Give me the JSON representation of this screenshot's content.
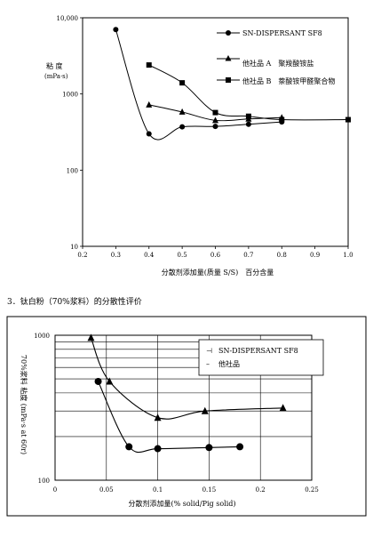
{
  "section_heading": "3．钛白粉（70%浆料）的分散性评价",
  "chart_data": [
    {
      "type": "line",
      "scale": "log-y",
      "ylabel": "粘 度\n(mPa·s)",
      "xlabel": "分散剂添加量(质量 S/S)　百分含量",
      "x_ticks": [
        "0.2",
        "0.3",
        "0.4",
        "0.5",
        "0.6",
        "0.7",
        "0.8",
        "0.9",
        "1.0"
      ],
      "y_ticks": [
        "10,000",
        "1000",
        "100",
        "10"
      ],
      "xlim": [
        0.2,
        1.0
      ],
      "ylim": [
        10,
        10000
      ],
      "series": [
        {
          "name": "SN-DISPERSANT SF8",
          "marker": "circle",
          "x": [
            0.3,
            0.4,
            0.5,
            0.6,
            0.7,
            0.8
          ],
          "y": [
            7000,
            300,
            370,
            375,
            400,
            430
          ]
        },
        {
          "name": "他社品 A　聚羧酸铵盐",
          "marker": "triangle",
          "x": [
            0.4,
            0.5,
            0.6,
            0.7,
            0.8
          ],
          "y": [
            720,
            580,
            450,
            470,
            490
          ]
        },
        {
          "name": "他社品 B　萘酸铵甲醛聚合物",
          "marker": "square",
          "x": [
            0.4,
            0.5,
            0.6,
            0.7,
            0.8,
            1.0
          ],
          "y": [
            2400,
            1400,
            570,
            510,
            460,
            460
          ]
        }
      ]
    },
    {
      "type": "line",
      "scale": "log-y",
      "ylabel": "70%浆料 粘度 (mPa·s at 60r)",
      "xlabel": "分散剂添加量(% solid/Pig solid)",
      "x_ticks": [
        "0",
        "0.05",
        "0.1",
        "0.15",
        "0.2",
        "0.25"
      ],
      "y_ticks": [
        "1000",
        "100"
      ],
      "xlim": [
        0,
        0.25
      ],
      "ylim": [
        100,
        1000
      ],
      "series": [
        {
          "name": "SN-DISPERSANT SF8",
          "marker": "triangle",
          "x": [
            0.035,
            0.053,
            0.1,
            0.146,
            0.222
          ],
          "y": [
            960,
            480,
            270,
            300,
            315
          ]
        },
        {
          "name": "他社品",
          "marker": "circle",
          "x": [
            0.042,
            0.072,
            0.1,
            0.15,
            0.18
          ],
          "y": [
            480,
            170,
            165,
            168,
            170
          ]
        }
      ]
    }
  ]
}
